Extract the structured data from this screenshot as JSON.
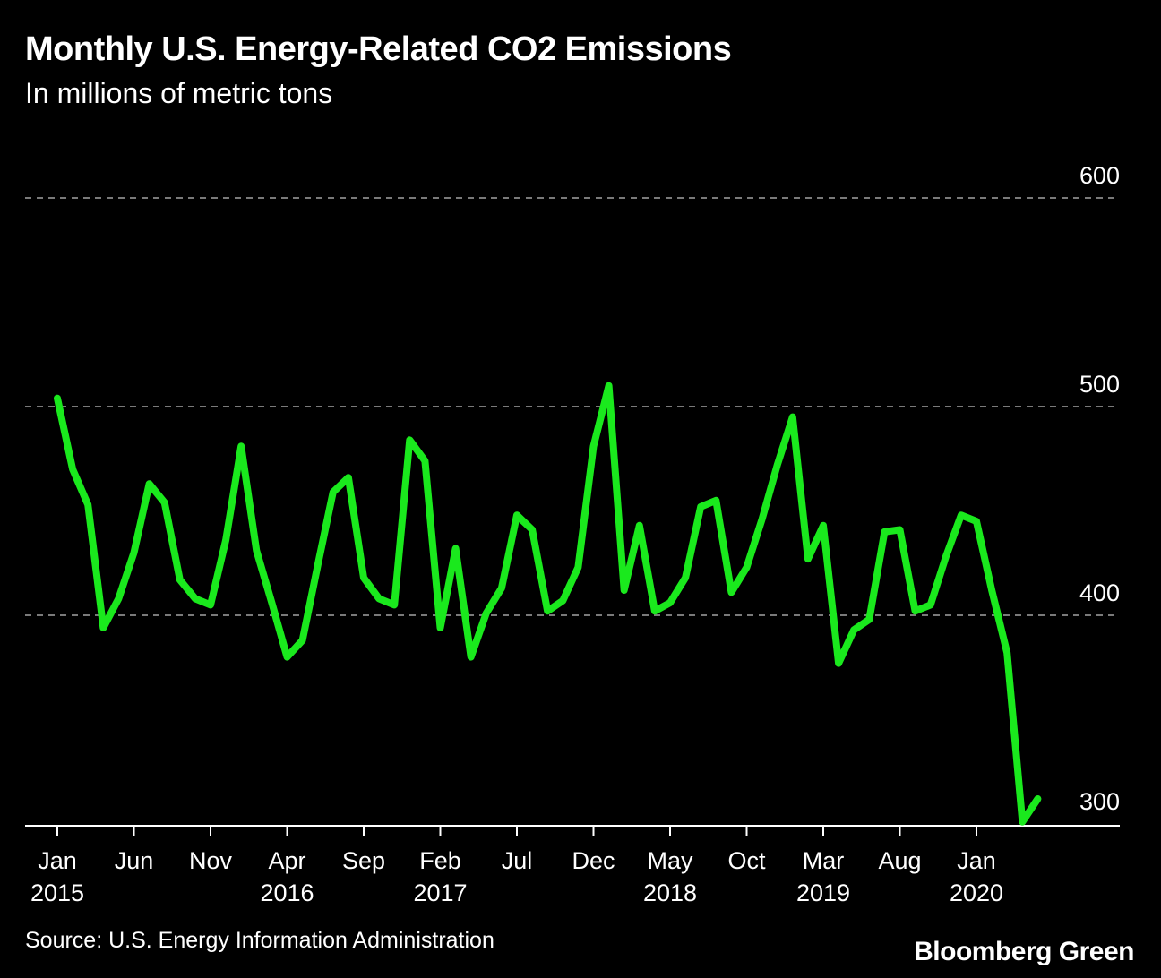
{
  "chart_data": {
    "type": "line",
    "title": "Monthly U.S. Energy-Related CO2 Emissions",
    "subtitle": "In millions of metric tons",
    "xlabel": "",
    "ylabel": "",
    "ylim": [
      300,
      600
    ],
    "yticks": [
      300,
      400,
      500,
      600
    ],
    "grid": true,
    "line_color": "#1ae91d",
    "x_tick_labels": [
      {
        "month": "Jan",
        "year": "2015",
        "index": 0
      },
      {
        "month": "Jun",
        "year": "",
        "index": 5
      },
      {
        "month": "Nov",
        "year": "",
        "index": 10
      },
      {
        "month": "Apr",
        "year": "2016",
        "index": 15
      },
      {
        "month": "Sep",
        "year": "",
        "index": 20
      },
      {
        "month": "Feb",
        "year": "2017",
        "index": 25
      },
      {
        "month": "Jul",
        "year": "",
        "index": 30
      },
      {
        "month": "Dec",
        "year": "",
        "index": 35
      },
      {
        "month": "May",
        "year": "2018",
        "index": 40
      },
      {
        "month": "Oct",
        "year": "",
        "index": 45
      },
      {
        "month": "Mar",
        "year": "2019",
        "index": 50
      },
      {
        "month": "Aug",
        "year": "",
        "index": 55
      },
      {
        "month": "Jan",
        "year": "2020",
        "index": 60
      }
    ],
    "x": [
      "2015-01",
      "2015-02",
      "2015-03",
      "2015-04",
      "2015-05",
      "2015-06",
      "2015-07",
      "2015-08",
      "2015-09",
      "2015-10",
      "2015-11",
      "2015-12",
      "2016-01",
      "2016-02",
      "2016-03",
      "2016-04",
      "2016-05",
      "2016-06",
      "2016-07",
      "2016-08",
      "2016-09",
      "2016-10",
      "2016-11",
      "2016-12",
      "2017-01",
      "2017-02",
      "2017-03",
      "2017-04",
      "2017-05",
      "2017-06",
      "2017-07",
      "2017-08",
      "2017-09",
      "2017-10",
      "2017-11",
      "2017-12",
      "2018-01",
      "2018-02",
      "2018-03",
      "2018-04",
      "2018-05",
      "2018-06",
      "2018-07",
      "2018-08",
      "2018-09",
      "2018-10",
      "2018-11",
      "2018-12",
      "2019-01",
      "2019-02",
      "2019-03",
      "2019-04",
      "2019-05",
      "2019-06",
      "2019-07",
      "2019-08",
      "2019-09",
      "2019-10",
      "2019-11",
      "2019-12",
      "2020-01",
      "2020-02",
      "2020-03",
      "2020-04",
      "2020-05"
    ],
    "series": [
      {
        "values": [
          504,
          470,
          453,
          394,
          408,
          430,
          463,
          454,
          417,
          408,
          405,
          436,
          481,
          431,
          406,
          380,
          388,
          424,
          459,
          466,
          418,
          408,
          405,
          484,
          474,
          394,
          432,
          380,
          401,
          413,
          448,
          441,
          402,
          407,
          423,
          481,
          510,
          412,
          443,
          402,
          406,
          418,
          452,
          455,
          411,
          423,
          446,
          472,
          495,
          427,
          443,
          377,
          393,
          398,
          440,
          441,
          402,
          405,
          428,
          448,
          445,
          412,
          382,
          301,
          312
        ]
      }
    ]
  },
  "footer": {
    "source": "Source: U.S. Energy Information Administration",
    "brand": "Bloomberg Green"
  }
}
